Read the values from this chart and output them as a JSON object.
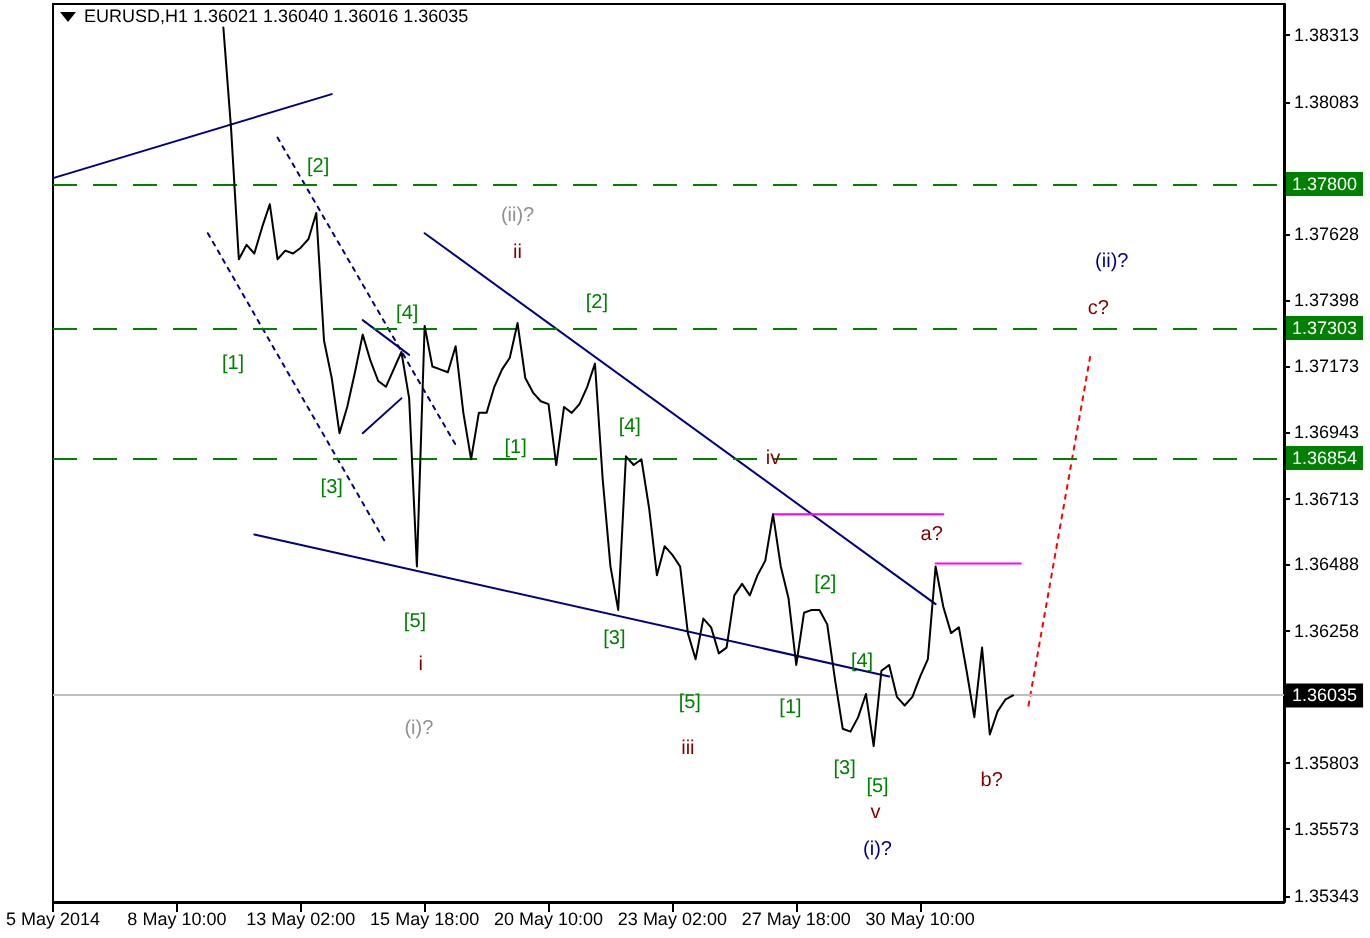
{
  "chart_data": {
    "type": "line",
    "title": "EURUSD,H1 1.36021 1.36040 1.36016 1.36035",
    "categories": [
      "5 May 2014",
      null,
      null,
      null,
      null,
      null,
      null,
      null,
      null,
      null,
      null,
      null,
      null,
      null,
      null,
      null,
      "8 May 10:00",
      null,
      null,
      null,
      null,
      null,
      null,
      null,
      null,
      null,
      null,
      null,
      null,
      null,
      null,
      null,
      "13 May 02:00",
      null,
      null,
      null,
      null,
      null,
      null,
      null,
      null,
      null,
      null,
      null,
      null,
      null,
      null,
      null,
      "15 May 18:00",
      null,
      null,
      null,
      null,
      null,
      null,
      null,
      null,
      null,
      null,
      null,
      null,
      null,
      null,
      null,
      "20 May 10:00",
      null,
      null,
      null,
      null,
      null,
      null,
      null,
      null,
      null,
      null,
      null,
      null,
      null,
      null,
      null,
      "23 May 02:00",
      null,
      null,
      null,
      null,
      null,
      null,
      null,
      null,
      null,
      null,
      null,
      null,
      null,
      null,
      null,
      "27 May 18:00",
      null,
      null,
      null,
      null,
      null,
      null,
      null,
      null,
      null,
      null,
      null,
      null,
      null,
      null,
      null,
      "30 May 10:00",
      null,
      null,
      null,
      null,
      null,
      null,
      null,
      null,
      null,
      null,
      null,
      null,
      null,
      null,
      null,
      null,
      null,
      null,
      null,
      null,
      null,
      null,
      null,
      null,
      null,
      null,
      null,
      null,
      null,
      null,
      null,
      null,
      null,
      null,
      null,
      null,
      null,
      null,
      null,
      null,
      null,
      null,
      null,
      null,
      null,
      null,
      null
    ],
    "ylim": [
      1.35322,
      1.38421
    ],
    "yticks": [
      1.35343,
      1.35573,
      1.35803,
      1.36258,
      1.36488,
      1.36713,
      1.36943,
      1.37173,
      1.37398,
      1.37628,
      1.38083,
      1.38313
    ],
    "grid": false,
    "marker": "none",
    "series": [
      {
        "color": "#000000",
        "line_style": "solid",
        "values": [
          null,
          null,
          null,
          null,
          null,
          null,
          null,
          null,
          null,
          null,
          null,
          null,
          null,
          null,
          null,
          null,
          null,
          null,
          null,
          null,
          null,
          null,
          1.3834,
          1.3799,
          1.3754,
          1.3759,
          1.3756,
          1.3765,
          1.3773,
          1.3754,
          1.3757,
          1.3756,
          1.3758,
          1.3761,
          1.377,
          1.3726,
          1.3713,
          1.3694,
          1.3703,
          1.3715,
          1.3728,
          1.3719,
          1.3712,
          1.371,
          1.3716,
          1.3722,
          1.3706,
          1.3648,
          1.3731,
          1.3717,
          1.3716,
          1.3715,
          1.3724,
          1.3701,
          1.3685,
          1.3701,
          1.3701,
          1.371,
          1.3716,
          1.372,
          1.3732,
          1.3713,
          1.3708,
          1.3705,
          1.3704,
          1.3683,
          1.3703,
          1.3701,
          1.3704,
          1.371,
          1.3718,
          1.3678,
          1.3648,
          1.3633,
          1.3686,
          1.3683,
          1.3685,
          1.3668,
          1.3645,
          1.3655,
          1.3652,
          1.3648,
          1.3625,
          1.3616,
          1.363,
          1.3627,
          1.3618,
          1.362,
          1.3638,
          1.3642,
          1.3638,
          1.3645,
          1.365,
          1.3666,
          1.3648,
          1.3637,
          1.3614,
          1.3632,
          1.3633,
          1.3633,
          1.3628,
          1.3609,
          1.3592,
          1.3591,
          1.3596,
          1.3604,
          1.3586,
          1.3612,
          1.3614,
          1.3603,
          1.36,
          1.3603,
          1.361,
          1.3616,
          1.3648,
          1.3634,
          1.3625,
          1.3627,
          1.3612,
          1.3596,
          1.362,
          1.359,
          1.3598,
          1.3602,
          1.36035,
          null,
          null,
          null,
          null,
          null,
          null,
          null,
          null,
          null,
          null,
          null,
          null,
          null,
          null,
          null,
          null,
          null,
          null,
          null,
          null,
          null,
          null,
          null,
          null,
          null,
          null,
          null,
          null,
          null,
          null,
          null,
          null,
          null,
          null,
          null
        ]
      },
      {
        "color": "#000080",
        "line_style": "solid",
        "values": [
          1.3782,
          null,
          null,
          null,
          null,
          null,
          null,
          null,
          null,
          null,
          null,
          null,
          null,
          null,
          null,
          null,
          null,
          null,
          null,
          null,
          null,
          null,
          null,
          null,
          null,
          null,
          null,
          null,
          null,
          null,
          null,
          null,
          null,
          null,
          null,
          null,
          1.3811,
          null,
          null,
          null,
          null,
          null,
          null,
          null,
          null,
          null,
          null,
          null,
          null,
          null,
          null,
          null,
          null,
          null,
          null,
          null,
          null,
          null,
          null,
          null,
          null,
          null,
          null,
          null,
          null,
          null,
          null,
          null,
          null,
          null,
          null,
          null,
          null,
          null,
          null,
          null,
          null,
          null,
          null,
          null,
          null,
          null,
          null,
          null,
          null,
          null,
          null,
          null,
          null,
          null,
          null,
          null,
          null,
          null,
          null,
          null,
          null,
          null,
          null,
          null,
          null,
          null,
          null,
          null,
          null,
          null,
          null,
          null,
          null,
          null,
          null,
          null,
          null,
          null,
          null,
          null,
          null,
          null,
          null,
          null,
          null,
          null,
          null,
          null,
          null,
          null,
          null,
          null,
          null,
          null,
          null,
          null,
          null,
          null,
          null,
          null,
          null,
          null,
          null,
          null,
          null,
          null,
          null,
          null,
          null,
          null,
          null,
          null,
          null,
          null,
          null,
          null,
          null,
          null,
          null,
          null,
          null,
          null,
          null,
          null
        ]
      },
      {
        "color": "#000080",
        "line_style": "solid",
        "values": [
          null,
          null,
          null,
          null,
          null,
          null,
          null,
          null,
          null,
          null,
          null,
          null,
          null,
          null,
          null,
          null,
          null,
          null,
          null,
          null,
          null,
          null,
          null,
          null,
          null,
          null,
          1.3659,
          null,
          null,
          null,
          null,
          null,
          null,
          null,
          null,
          null,
          null,
          null,
          null,
          null,
          null,
          null,
          null,
          null,
          null,
          null,
          null,
          null,
          null,
          null,
          null,
          null,
          null,
          null,
          null,
          null,
          null,
          null,
          null,
          null,
          null,
          null,
          null,
          null,
          null,
          null,
          null,
          null,
          null,
          null,
          null,
          null,
          null,
          null,
          null,
          null,
          null,
          null,
          null,
          null,
          null,
          null,
          null,
          null,
          null,
          null,
          null,
          null,
          null,
          null,
          null,
          null,
          null,
          null,
          null,
          null,
          null,
          null,
          null,
          null,
          null,
          null,
          null,
          null,
          null,
          null,
          null,
          null,
          1.361,
          null,
          null,
          null,
          null,
          null,
          null,
          null,
          null,
          null,
          null,
          null,
          null,
          null,
          null,
          null,
          null,
          null,
          null,
          null,
          null,
          null,
          null,
          null,
          null,
          null,
          null,
          null,
          null,
          null,
          null,
          null,
          null,
          null,
          null,
          null,
          null,
          null,
          null,
          null,
          null,
          null,
          null,
          null,
          null,
          null,
          null,
          null,
          null,
          null,
          null,
          null
        ]
      },
      {
        "color": "#000080",
        "line_style": "solid",
        "values": [
          null,
          null,
          null,
          null,
          null,
          null,
          null,
          null,
          null,
          null,
          null,
          null,
          null,
          null,
          null,
          null,
          null,
          null,
          null,
          null,
          null,
          null,
          null,
          null,
          null,
          null,
          null,
          null,
          null,
          null,
          null,
          null,
          null,
          null,
          null,
          null,
          null,
          null,
          null,
          null,
          null,
          null,
          null,
          null,
          null,
          null,
          null,
          null,
          1.3763,
          null,
          null,
          null,
          null,
          null,
          null,
          null,
          null,
          null,
          null,
          null,
          null,
          null,
          null,
          null,
          null,
          null,
          null,
          null,
          null,
          null,
          null,
          null,
          null,
          null,
          null,
          null,
          null,
          null,
          null,
          null,
          null,
          null,
          null,
          null,
          null,
          null,
          null,
          null,
          null,
          null,
          null,
          null,
          null,
          null,
          null,
          null,
          null,
          null,
          null,
          null,
          null,
          null,
          null,
          null,
          null,
          null,
          null,
          null,
          null,
          null,
          null,
          null,
          null,
          null,
          1.3635,
          null,
          null,
          null,
          null,
          null,
          null,
          null,
          null,
          null,
          null,
          null,
          null,
          null,
          null,
          null,
          null,
          null,
          null,
          null,
          null,
          null,
          null,
          null,
          null,
          null,
          null,
          null,
          null,
          null,
          null,
          null,
          null,
          null,
          null,
          null,
          null,
          null,
          null,
          null,
          null,
          null,
          null,
          null,
          null,
          null
        ]
      },
      {
        "color": "#000080",
        "line_style": "solid",
        "values": [
          null,
          null,
          null,
          null,
          null,
          null,
          null,
          null,
          null,
          null,
          null,
          null,
          null,
          null,
          null,
          null,
          null,
          null,
          null,
          null,
          null,
          null,
          null,
          null,
          null,
          null,
          null,
          null,
          null,
          null,
          null,
          null,
          null,
          null,
          null,
          null,
          null,
          null,
          null,
          null,
          1.3733,
          null,
          null,
          null,
          null,
          null,
          1.3721,
          null,
          null,
          null,
          null,
          null,
          null,
          null,
          null,
          null,
          null,
          null,
          null,
          null,
          null,
          null,
          null,
          null,
          null,
          null,
          null,
          null,
          null,
          null,
          null,
          null,
          null,
          null,
          null,
          null,
          null,
          null,
          null,
          null,
          null,
          null,
          null,
          null,
          null,
          null,
          null,
          null,
          null,
          null,
          null,
          null,
          null,
          null,
          null,
          null,
          null,
          null,
          null,
          null,
          null,
          null,
          null,
          null,
          null,
          null,
          null,
          null,
          null,
          null,
          null,
          null,
          null,
          null,
          null,
          null,
          null,
          null,
          null,
          null,
          null,
          null,
          null,
          null,
          null,
          null,
          null,
          null,
          null,
          null,
          null,
          null,
          null,
          null,
          null,
          null,
          null,
          null,
          null,
          null,
          null,
          null,
          null,
          null,
          null,
          null,
          null,
          null,
          null,
          null,
          null,
          null,
          null,
          null,
          null,
          null,
          null,
          null,
          null,
          null
        ]
      },
      {
        "color": "#000080",
        "line_style": "solid",
        "values": [
          null,
          null,
          null,
          null,
          null,
          null,
          null,
          null,
          null,
          null,
          null,
          null,
          null,
          null,
          null,
          null,
          null,
          null,
          null,
          null,
          null,
          null,
          null,
          null,
          null,
          null,
          null,
          null,
          null,
          null,
          null,
          null,
          null,
          null,
          null,
          null,
          null,
          null,
          null,
          null,
          1.3694,
          null,
          null,
          null,
          null,
          1.3706,
          null,
          null,
          null,
          null,
          null,
          null,
          null,
          null,
          null,
          null,
          null,
          null,
          null,
          null,
          null,
          null,
          null,
          null,
          null,
          null,
          null,
          null,
          null,
          null,
          null,
          null,
          null,
          null,
          null,
          null,
          null,
          null,
          null,
          null,
          null,
          null,
          null,
          null,
          null,
          null,
          null,
          null,
          null,
          null,
          null,
          null,
          null,
          null,
          null,
          null,
          null,
          null,
          null,
          null,
          null,
          null,
          null,
          null,
          null,
          null,
          null,
          null,
          null,
          null,
          null,
          null,
          null,
          null,
          null,
          null,
          null,
          null,
          null,
          null,
          null,
          null,
          null,
          null,
          null,
          null,
          null,
          null,
          null,
          null,
          null,
          null,
          null,
          null,
          null,
          null,
          null,
          null,
          null,
          null,
          null,
          null,
          null,
          null,
          null,
          null,
          null,
          null,
          null,
          null,
          null,
          null,
          null,
          null,
          null,
          null,
          null,
          null,
          null,
          null
        ]
      },
      {
        "color": "#000080",
        "line_style": "dotted",
        "values": [
          null,
          null,
          null,
          null,
          null,
          null,
          null,
          null,
          null,
          null,
          null,
          null,
          null,
          null,
          null,
          null,
          null,
          null,
          null,
          null,
          1.3763,
          null,
          null,
          null,
          null,
          null,
          null,
          null,
          null,
          null,
          null,
          null,
          null,
          null,
          null,
          null,
          null,
          null,
          null,
          null,
          null,
          null,
          null,
          1.3656,
          null,
          null,
          null,
          null,
          null,
          null,
          null,
          null,
          null,
          null,
          null,
          null,
          null,
          null,
          null,
          null,
          null,
          null,
          null,
          null,
          null,
          null,
          null,
          null,
          null,
          null,
          null,
          null,
          null,
          null,
          null,
          null,
          null,
          null,
          null,
          null,
          null,
          null,
          null,
          null,
          null,
          null,
          null,
          null,
          null,
          null,
          null,
          null,
          null,
          null,
          null,
          null,
          null,
          null,
          null,
          null,
          null,
          null,
          null,
          null,
          null,
          null,
          null,
          null,
          null,
          null,
          null,
          null,
          null,
          null,
          null,
          null,
          null,
          null,
          null,
          null,
          null,
          null,
          null,
          null,
          null,
          null,
          null,
          null,
          null,
          null,
          null,
          null,
          null,
          null,
          null,
          null,
          null,
          null,
          null,
          null,
          null,
          null,
          null,
          null,
          null,
          null,
          null,
          null,
          null,
          null,
          null,
          null,
          null,
          null,
          null,
          null,
          null,
          null,
          null,
          null
        ]
      },
      {
        "color": "#000080",
        "line_style": "dotted",
        "values": [
          null,
          null,
          null,
          null,
          null,
          null,
          null,
          null,
          null,
          null,
          null,
          null,
          null,
          null,
          null,
          null,
          null,
          null,
          null,
          null,
          null,
          null,
          null,
          null,
          null,
          null,
          null,
          null,
          null,
          1.3796,
          null,
          null,
          null,
          null,
          null,
          null,
          null,
          null,
          null,
          null,
          null,
          null,
          null,
          null,
          null,
          null,
          null,
          null,
          null,
          null,
          null,
          null,
          1.369,
          null,
          null,
          null,
          null,
          null,
          null,
          null,
          null,
          null,
          null,
          null,
          null,
          null,
          null,
          null,
          null,
          null,
          null,
          null,
          null,
          null,
          null,
          null,
          null,
          null,
          null,
          null,
          null,
          null,
          null,
          null,
          null,
          null,
          null,
          null,
          null,
          null,
          null,
          null,
          null,
          null,
          null,
          null,
          null,
          null,
          null,
          null,
          null,
          null,
          null,
          null,
          null,
          null,
          null,
          null,
          null,
          null,
          null,
          null,
          null,
          null,
          null,
          null,
          null,
          null,
          null,
          null,
          null,
          null,
          null,
          null,
          null,
          null,
          null,
          null,
          null,
          null,
          null,
          null,
          null,
          null,
          null,
          null,
          null,
          null,
          null,
          null,
          null,
          null,
          null,
          null,
          null,
          null,
          null,
          null,
          null,
          null,
          null,
          null,
          null,
          null,
          null,
          null,
          null,
          null,
          null,
          null
        ]
      },
      {
        "color": "#ff00ff",
        "line_style": "solid",
        "values": [
          null,
          null,
          null,
          null,
          null,
          null,
          null,
          null,
          null,
          null,
          null,
          null,
          null,
          null,
          null,
          null,
          null,
          null,
          null,
          null,
          null,
          null,
          null,
          null,
          null,
          null,
          null,
          null,
          null,
          null,
          null,
          null,
          null,
          null,
          null,
          null,
          null,
          null,
          null,
          null,
          null,
          null,
          null,
          null,
          null,
          null,
          null,
          null,
          null,
          null,
          null,
          null,
          null,
          null,
          null,
          null,
          null,
          null,
          null,
          null,
          null,
          null,
          null,
          null,
          null,
          null,
          null,
          null,
          null,
          null,
          null,
          null,
          null,
          null,
          null,
          null,
          null,
          null,
          null,
          null,
          null,
          null,
          null,
          null,
          null,
          null,
          null,
          null,
          null,
          null,
          null,
          null,
          null,
          1.3666,
          null,
          null,
          null,
          null,
          null,
          null,
          null,
          null,
          null,
          null,
          null,
          null,
          null,
          null,
          null,
          null,
          null,
          null,
          null,
          null,
          null,
          1.3666,
          null,
          null,
          null,
          null,
          null,
          null,
          null,
          null,
          null,
          null,
          null,
          null,
          null,
          null,
          null,
          null,
          null,
          null,
          null,
          null,
          null,
          null,
          null,
          null,
          null,
          null,
          null,
          null,
          null,
          null,
          null,
          null,
          null,
          null,
          null,
          null,
          null,
          null,
          null,
          null,
          null,
          null,
          null,
          null
        ]
      },
      {
        "color": "#ff00ff",
        "line_style": "solid",
        "values": [
          null,
          null,
          null,
          null,
          null,
          null,
          null,
          null,
          null,
          null,
          null,
          null,
          null,
          null,
          null,
          null,
          null,
          null,
          null,
          null,
          null,
          null,
          null,
          null,
          null,
          null,
          null,
          null,
          null,
          null,
          null,
          null,
          null,
          null,
          null,
          null,
          null,
          null,
          null,
          null,
          null,
          null,
          null,
          null,
          null,
          null,
          null,
          null,
          null,
          null,
          null,
          null,
          null,
          null,
          null,
          null,
          null,
          null,
          null,
          null,
          null,
          null,
          null,
          null,
          null,
          null,
          null,
          null,
          null,
          null,
          null,
          null,
          null,
          null,
          null,
          null,
          null,
          null,
          null,
          null,
          null,
          null,
          null,
          null,
          null,
          null,
          null,
          null,
          null,
          null,
          null,
          null,
          null,
          null,
          null,
          null,
          null,
          null,
          null,
          null,
          null,
          null,
          null,
          null,
          null,
          null,
          null,
          null,
          null,
          null,
          null,
          null,
          null,
          null,
          1.3649,
          null,
          null,
          null,
          null,
          null,
          null,
          null,
          null,
          null,
          null,
          1.3649,
          null,
          null,
          null,
          null,
          null,
          null,
          null,
          null,
          null,
          null,
          null,
          null,
          null,
          null,
          null,
          null,
          null,
          null,
          null,
          null,
          null,
          null,
          null,
          null,
          null,
          null,
          null,
          null,
          null,
          null,
          null,
          null,
          null,
          null
        ]
      },
      {
        "color": "#ff0000",
        "line_style": "dotted",
        "values": [
          null,
          null,
          null,
          null,
          null,
          null,
          null,
          null,
          null,
          null,
          null,
          null,
          null,
          null,
          null,
          null,
          null,
          null,
          null,
          null,
          null,
          null,
          null,
          null,
          null,
          null,
          null,
          null,
          null,
          null,
          null,
          null,
          null,
          null,
          null,
          null,
          null,
          null,
          null,
          null,
          null,
          null,
          null,
          null,
          null,
          null,
          null,
          null,
          null,
          null,
          null,
          null,
          null,
          null,
          null,
          null,
          null,
          null,
          null,
          null,
          null,
          null,
          null,
          null,
          null,
          null,
          null,
          null,
          null,
          null,
          null,
          null,
          null,
          null,
          null,
          null,
          null,
          null,
          null,
          null,
          null,
          null,
          null,
          null,
          null,
          null,
          null,
          null,
          null,
          null,
          null,
          null,
          null,
          null,
          null,
          null,
          null,
          null,
          null,
          null,
          null,
          null,
          null,
          null,
          null,
          null,
          null,
          null,
          null,
          null,
          null,
          null,
          null,
          null,
          null,
          null,
          null,
          null,
          null,
          null,
          null,
          null,
          null,
          null,
          null,
          null,
          1.36,
          null,
          null,
          null,
          null,
          null,
          null,
          null,
          1.3721,
          null,
          null,
          null,
          null,
          null,
          null,
          null,
          null,
          null,
          null,
          null,
          null,
          null,
          null,
          null,
          null,
          null,
          null,
          null,
          null,
          null,
          null,
          null,
          null,
          null
        ]
      }
    ],
    "ref_lines": [
      {
        "axis": "y",
        "value": 1.378,
        "label": "1.37800",
        "color": "#008000",
        "line_style": "dashed"
      },
      {
        "axis": "y",
        "value": 1.37303,
        "label": "1.37303",
        "color": "#008000",
        "line_style": "dashed"
      },
      {
        "axis": "y",
        "value": 1.36854,
        "label": "1.36854",
        "color": "#008000",
        "line_style": "dashed"
      },
      {
        "axis": "y",
        "value": 1.36035,
        "label": "1.36035",
        "color": "#c0c0c0",
        "line_style": "solid"
      }
    ],
    "annotations": [
      "[2]",
      "[1]",
      "(ii)?",
      "ii",
      "[4]",
      "[2]",
      "[3]",
      "[4]",
      "[1]",
      "iv",
      "a?",
      "[5]",
      "i",
      "[3]",
      "[2]",
      "[4]",
      "[5]",
      "[1]",
      "iii",
      "(i)?",
      "[3]",
      "[5]",
      "v",
      "(i)?",
      "b?",
      "(ii)?",
      "c?"
    ]
  }
}
